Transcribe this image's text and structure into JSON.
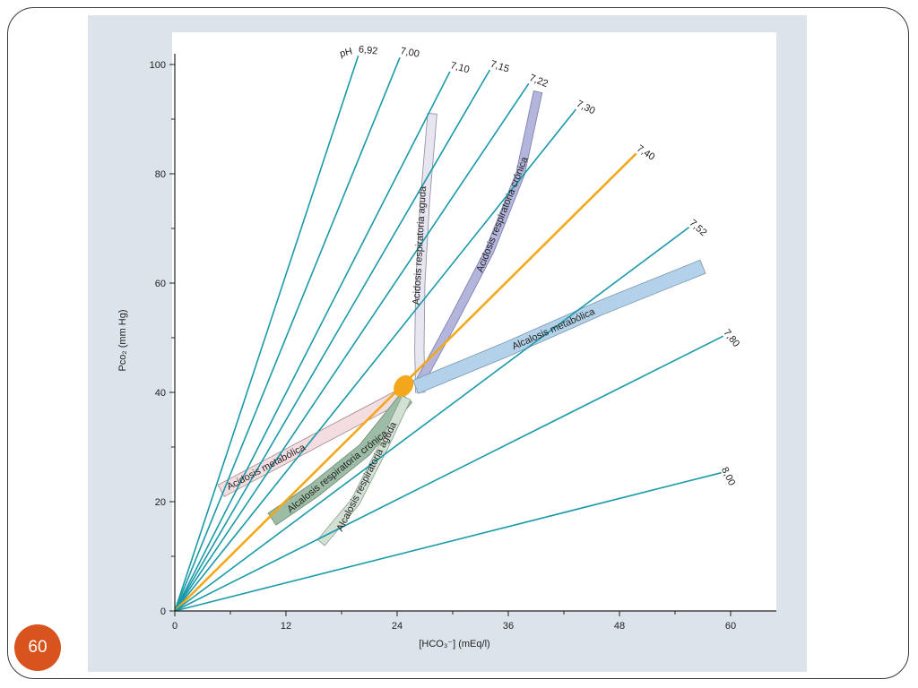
{
  "slide": {
    "page_number": "60"
  },
  "colors": {
    "isobar": "#1a9aa8",
    "isobar_normal": "#f2a81a",
    "normal_point": "#f2a81a",
    "plot_bg": "#ffffff",
    "panel_bg": "#dde3ea",
    "badge": "#d9531e"
  },
  "chart_data": {
    "type": "line",
    "title": "",
    "xlabel": "[HCO₃⁻] (mEq/l)",
    "ylabel": "Pco₂ (mm Hg)",
    "xlim": [
      0,
      65
    ],
    "ylim": [
      0,
      100
    ],
    "xticks": [
      0,
      12,
      24,
      36,
      48,
      60
    ],
    "yticks": [
      0,
      20,
      40,
      60,
      80,
      100
    ],
    "grid": false,
    "legend": "none",
    "ph_prefix": "pH",
    "isobars": [
      {
        "label": "6,92",
        "end": [
          19.8,
          101.6
        ],
        "normal": false
      },
      {
        "label": "7,00",
        "end": [
          24.3,
          101.3
        ],
        "normal": false
      },
      {
        "label": "7,10",
        "end": [
          29.7,
          98.7
        ],
        "normal": false
      },
      {
        "label": "7,15",
        "end": [
          34.0,
          99.0
        ],
        "normal": false
      },
      {
        "label": "7,22",
        "end": [
          38.2,
          96.5
        ],
        "normal": false
      },
      {
        "label": "7,30",
        "end": [
          43.3,
          91.8
        ],
        "normal": false
      },
      {
        "label": "7,40",
        "end": [
          49.8,
          83.7
        ],
        "normal": true
      },
      {
        "label": "7,52",
        "end": [
          55.5,
          70.2
        ],
        "normal": false
      },
      {
        "label": "7,80",
        "end": [
          59.2,
          50.3
        ],
        "normal": false
      },
      {
        "label": "8,00",
        "end": [
          59.0,
          25.3
        ],
        "normal": false
      }
    ],
    "bands": [
      {
        "label": "Acidosis respiratoria aguda",
        "fill": "#e6e5f0",
        "stroke": "#8a8aa0",
        "centerline": [
          [
            26.5,
            40
          ],
          [
            26.4,
            48
          ],
          [
            26.5,
            60
          ],
          [
            27.0,
            75
          ],
          [
            27.8,
            91
          ]
        ],
        "width": 1.7
      },
      {
        "label": "Acidosis respiratoria crónica",
        "fill": "#b3b5dc",
        "stroke": "#7a7ca8",
        "centerline": [
          [
            26.5,
            42
          ],
          [
            30,
            53
          ],
          [
            34,
            66
          ],
          [
            37.3,
            80
          ],
          [
            39.2,
            95
          ]
        ],
        "width": 1.6
      },
      {
        "label": "Alcalosis metabólica",
        "fill": "#b3d1e8",
        "stroke": "#7a98b0",
        "centerline": [
          [
            26,
            41
          ],
          [
            36,
            48
          ],
          [
            46,
            55.5
          ],
          [
            57,
            63
          ]
        ],
        "width": 2.6
      },
      {
        "label": "Acidosis metabólica",
        "fill": "#f3dde0",
        "stroke": "#a08a8e",
        "centerline": [
          [
            24.5,
            39.5
          ],
          [
            15,
            31
          ],
          [
            5,
            22
          ]
        ],
        "width": 2.4
      },
      {
        "label": "Alcalosis respiratoria crónica",
        "fill": "#9dbca5",
        "stroke": "#6a8a72",
        "centerline": [
          [
            25,
            39
          ],
          [
            20.5,
            29.5
          ],
          [
            15,
            22
          ],
          [
            10.5,
            16.8
          ]
        ],
        "width": 2.6
      },
      {
        "label": "Alcalosis respiratoria aguda",
        "fill": "#d3e0d4",
        "stroke": "#8aa08c",
        "centerline": [
          [
            25,
            39
          ],
          [
            22.5,
            30
          ],
          [
            19.5,
            20
          ],
          [
            15.8,
            12.5
          ]
        ],
        "width": 1.7
      }
    ],
    "normal_point": {
      "x": 24.5,
      "y": 40.5
    }
  }
}
